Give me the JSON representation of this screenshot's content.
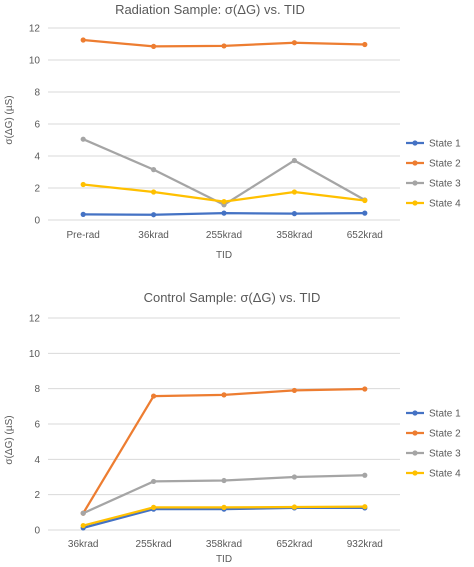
{
  "chart_data": [
    {
      "type": "line",
      "title": "Radiation Sample: σ(ΔG) vs. TID",
      "xlabel": "TID",
      "ylabel": "σ(ΔG) (µS)",
      "categories": [
        "Pre-rad",
        "36krad",
        "255krad",
        "358krad",
        "652krad"
      ],
      "ylim": [
        0,
        12
      ],
      "yticks": [
        "0",
        "2",
        "4",
        "6",
        "8",
        "10",
        "12"
      ],
      "grid": true,
      "legend_position": "right",
      "series": [
        {
          "name": "State 1",
          "color": "#4472c4",
          "values": [
            0.35,
            0.33,
            0.43,
            0.4,
            0.43
          ]
        },
        {
          "name": "State 2",
          "color": "#ed7d31",
          "values": [
            11.25,
            10.85,
            10.88,
            11.08,
            10.97
          ]
        },
        {
          "name": "State 3",
          "color": "#a5a5a5",
          "values": [
            5.05,
            3.15,
            0.95,
            3.72,
            1.25
          ]
        },
        {
          "name": "State 4",
          "color": "#ffc000",
          "values": [
            2.22,
            1.75,
            1.15,
            1.75,
            1.22
          ]
        }
      ]
    },
    {
      "type": "line",
      "title": "Control Sample: σ(ΔG) vs. TID",
      "xlabel": "TID",
      "ylabel": "σ(ΔG) (µS)",
      "categories": [
        "36krad",
        "255krad",
        "358krad",
        "652krad",
        "932krad"
      ],
      "ylim": [
        0,
        12
      ],
      "yticks": [
        "0",
        "2",
        "4",
        "6",
        "8",
        "10",
        "12"
      ],
      "grid": true,
      "legend_position": "right",
      "series": [
        {
          "name": "State 1",
          "color": "#4472c4",
          "values": [
            0.12,
            1.18,
            1.18,
            1.25,
            1.25
          ]
        },
        {
          "name": "State 2",
          "color": "#ed7d31",
          "values": [
            0.95,
            7.58,
            7.65,
            7.9,
            7.98
          ]
        },
        {
          "name": "State 3",
          "color": "#a5a5a5",
          "values": [
            0.95,
            2.75,
            2.8,
            3.0,
            3.1
          ]
        },
        {
          "name": "State 4",
          "color": "#ffc000",
          "values": [
            0.25,
            1.28,
            1.28,
            1.3,
            1.32
          ]
        }
      ]
    }
  ]
}
